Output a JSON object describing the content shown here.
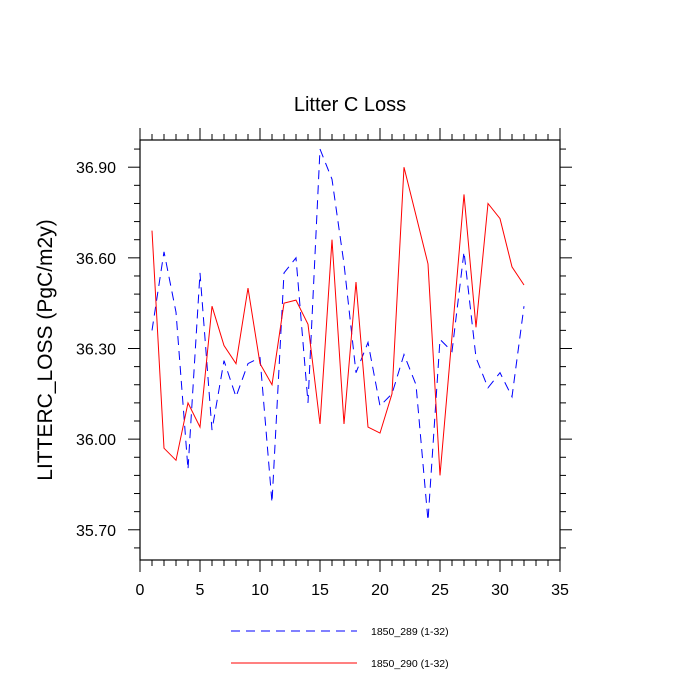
{
  "chart_data": {
    "type": "line",
    "title": "Litter C Loss",
    "xlabel": "",
    "ylabel": "LITTERC_LOSS  (PgC/m2y)",
    "xlim": [
      0,
      35
    ],
    "ylim": [
      35.6,
      36.99
    ],
    "xticks": [
      0,
      5,
      10,
      15,
      20,
      25,
      30,
      35
    ],
    "yticks": [
      35.7,
      36.0,
      36.3,
      36.6,
      36.9
    ],
    "x": [
      1,
      2,
      3,
      4,
      5,
      6,
      7,
      8,
      9,
      10,
      11,
      12,
      13,
      14,
      15,
      16,
      17,
      18,
      19,
      20,
      21,
      22,
      23,
      24,
      25,
      26,
      27,
      28,
      29,
      30,
      31,
      32
    ],
    "series": [
      {
        "name": "1850_289 (1-32)",
        "color": "#0000ff",
        "dash": "dashed",
        "values": [
          36.36,
          36.62,
          36.42,
          35.9,
          36.55,
          36.03,
          36.26,
          36.14,
          36.25,
          36.27,
          35.79,
          36.55,
          36.6,
          36.12,
          36.96,
          36.86,
          36.58,
          36.22,
          36.32,
          36.11,
          36.15,
          36.28,
          36.18,
          35.73,
          36.33,
          36.29,
          36.62,
          36.27,
          36.17,
          36.22,
          36.14,
          36.44
        ]
      },
      {
        "name": "1850_290 (1-32)",
        "color": "#ff0000",
        "dash": "solid",
        "values": [
          36.69,
          35.97,
          35.93,
          36.12,
          36.04,
          36.44,
          36.31,
          36.25,
          36.5,
          36.25,
          36.18,
          36.45,
          36.46,
          36.38,
          36.05,
          36.66,
          36.05,
          36.52,
          36.04,
          36.02,
          36.15,
          36.9,
          36.74,
          36.58,
          35.88,
          36.34,
          36.81,
          36.37,
          36.78,
          36.73,
          36.57,
          36.51
        ]
      }
    ],
    "legend_position": "bottom"
  }
}
